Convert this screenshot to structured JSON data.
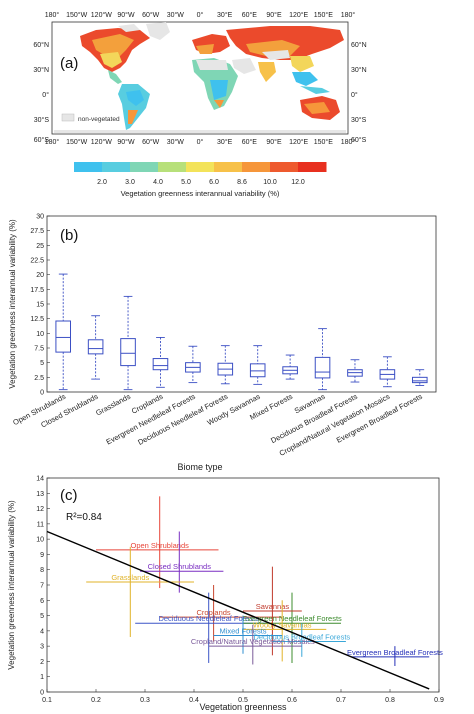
{
  "panel_a": {
    "label": "(a)",
    "lon_ticks": [
      "180°",
      "150°W",
      "120°W",
      "90°W",
      "60°W",
      "30°W",
      "0°",
      "30°E",
      "60°E",
      "90°E",
      "120°E",
      "150°E",
      "180°"
    ],
    "lat_ticks": [
      "60°N",
      "30°N",
      "0°",
      "30°S",
      "60°S"
    ],
    "legend_nonveg": "non-vegetated",
    "colorbar": {
      "ticks": [
        "2.0",
        "3.0",
        "4.0",
        "5.0",
        "6.0",
        "8.6",
        "10.0",
        "12.0"
      ],
      "colors": [
        "#3fc1ee",
        "#58cde0",
        "#7fd6b5",
        "#b7e07a",
        "#f3e35a",
        "#f7c149",
        "#f6963a",
        "#ee5a2e",
        "#e8301f"
      ],
      "title": "Vegetation greenness interannual variability (%)"
    }
  },
  "chart_data": [
    {
      "type": "box",
      "label": "(b)",
      "xlabel": "Biome type",
      "ylabel": "Vegetation greenness interannual variability (%)",
      "ylim": [
        0,
        30
      ],
      "yticks": [
        "0",
        "2.5",
        "5",
        "7.5",
        "10",
        "12.5",
        "15",
        "17.5",
        "20",
        "22.5",
        "25",
        "27.5",
        "30"
      ],
      "categories": [
        "Open Shrublands",
        "Closed Shrublands",
        "Grasslands",
        "Croplands",
        "Evergreen Needleleaf Forests",
        "Deciduous Needleleaf Forests",
        "Woody Savannas",
        "Mixed Forests",
        "Savannas",
        "Deciduous Broadleaf Forests",
        "Cropland/Natural Vegetation Mosaics",
        "Evergreen Broadleaf Forests"
      ],
      "boxes": [
        {
          "min": 0.4,
          "q1": 6.8,
          "median": 9.3,
          "q3": 12.1,
          "max": 20.1
        },
        {
          "min": 2.2,
          "q1": 6.5,
          "median": 7.4,
          "q3": 8.9,
          "max": 13.0
        },
        {
          "min": 0.4,
          "q1": 4.5,
          "median": 6.6,
          "q3": 9.1,
          "max": 16.3
        },
        {
          "min": 0.8,
          "q1": 3.8,
          "median": 4.5,
          "q3": 5.7,
          "max": 9.3
        },
        {
          "min": 1.6,
          "q1": 3.4,
          "median": 4.2,
          "q3": 5.0,
          "max": 7.8
        },
        {
          "min": 1.4,
          "q1": 2.9,
          "median": 3.9,
          "q3": 4.9,
          "max": 7.9
        },
        {
          "min": 1.3,
          "q1": 2.6,
          "median": 3.6,
          "q3": 4.8,
          "max": 7.9
        },
        {
          "min": 2.2,
          "q1": 3.1,
          "median": 3.7,
          "q3": 4.3,
          "max": 6.3
        },
        {
          "min": 0.4,
          "q1": 2.4,
          "median": 3.4,
          "q3": 5.9,
          "max": 10.8
        },
        {
          "min": 1.7,
          "q1": 2.7,
          "median": 3.3,
          "q3": 3.8,
          "max": 5.5
        },
        {
          "min": 0.9,
          "q1": 2.2,
          "median": 3.0,
          "q3": 3.8,
          "max": 6.0
        },
        {
          "min": 1.1,
          "q1": 1.6,
          "median": 1.9,
          "q3": 2.5,
          "max": 3.8
        }
      ]
    },
    {
      "type": "scatter",
      "label": "(c)",
      "xlabel": "Vegetation greenness",
      "ylabel": "Vegetation greenness interannual variability (%)",
      "xlim": [
        0.1,
        0.9
      ],
      "ylim": [
        0,
        14
      ],
      "xticks": [
        "0.1",
        "0.2",
        "0.3",
        "0.4",
        "0.5",
        "0.6",
        "0.7",
        "0.8",
        "0.9"
      ],
      "yticks": [
        "0",
        "1",
        "2",
        "3",
        "4",
        "5",
        "6",
        "7",
        "8",
        "9",
        "10",
        "11",
        "12",
        "13",
        "14"
      ],
      "annotation": "R²=0.84",
      "regression": {
        "x": [
          0.1,
          0.88
        ],
        "y": [
          10.5,
          0.2
        ]
      },
      "points": [
        {
          "name": "Open Shrublands",
          "x": 0.33,
          "y": 9.3,
          "xerr": [
            0.2,
            0.45
          ],
          "yerr": [
            6.8,
            12.8
          ],
          "color": "#e8463a"
        },
        {
          "name": "Closed Shrublands",
          "x": 0.37,
          "y": 7.9,
          "xerr": [
            0.29,
            0.46
          ],
          "yerr": [
            6.5,
            10.5
          ],
          "color": "#7a2fc2"
        },
        {
          "name": "Grasslands",
          "x": 0.27,
          "y": 7.2,
          "xerr": [
            0.18,
            0.4
          ],
          "yerr": [
            3.6,
            9.5
          ],
          "color": "#e0b329"
        },
        {
          "name": "Croplands",
          "x": 0.44,
          "y": 4.9,
          "xerr": [
            0.33,
            0.58
          ],
          "yerr": [
            3.3,
            7.0
          ],
          "color": "#c8472f"
        },
        {
          "name": "Deciduous Needleleaf Forests",
          "x": 0.43,
          "y": 4.5,
          "xerr": [
            0.28,
            0.55
          ],
          "yerr": [
            1.9,
            6.5
          ],
          "color": "#3b55c7"
        },
        {
          "name": "Evergreen Needleleaf Forests",
          "x": 0.6,
          "y": 4.5,
          "xerr": [
            0.5,
            0.7
          ],
          "yerr": [
            1.9,
            6.5
          ],
          "color": "#3d8c2e"
        },
        {
          "name": "Savannas",
          "x": 0.56,
          "y": 5.3,
          "xerr": [
            0.5,
            0.62
          ],
          "yerr": [
            2.4,
            8.2
          ],
          "color": "#c0392b"
        },
        {
          "name": "Woody Savannas",
          "x": 0.58,
          "y": 4.1,
          "xerr": [
            0.5,
            0.67
          ],
          "yerr": [
            2.0,
            6.0
          ],
          "color": "#e0b329"
        },
        {
          "name": "Mixed Forests",
          "x": 0.5,
          "y": 3.7,
          "xerr": [
            0.44,
            0.58
          ],
          "yerr": [
            2.5,
            5.0
          ],
          "color": "#2f8fd1"
        },
        {
          "name": "Deciduous Broadleaf Forests",
          "x": 0.62,
          "y": 3.3,
          "xerr": [
            0.56,
            0.71
          ],
          "yerr": [
            2.3,
            4.5
          ],
          "color": "#3aa7d8"
        },
        {
          "name": "Cropland/Natural Vegetation Mosaics",
          "x": 0.52,
          "y": 3.0,
          "xerr": [
            0.43,
            0.62
          ],
          "yerr": [
            1.8,
            4.4
          ],
          "color": "#7a5a9a"
        },
        {
          "name": "Evergreen Broadleaf Forests",
          "x": 0.81,
          "y": 2.3,
          "xerr": [
            0.72,
            0.88
          ],
          "yerr": [
            1.7,
            3.0
          ],
          "color": "#2530b8"
        }
      ]
    }
  ]
}
